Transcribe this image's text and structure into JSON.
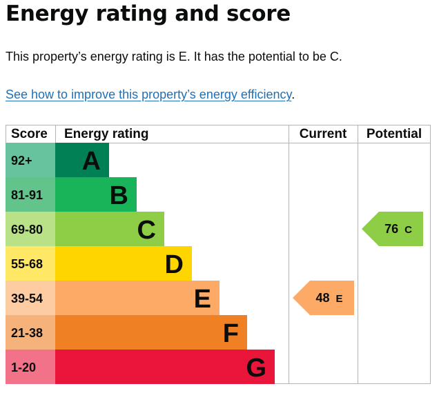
{
  "page": {
    "title": "Energy rating and score",
    "summary": "This property’s energy rating is E. It has the potential to be C.",
    "improve_link": "See how to improve this property’s energy efficiency",
    "improve_suffix": "."
  },
  "chart_data": {
    "type": "table",
    "columns": [
      "Score",
      "Energy rating",
      "Current",
      "Potential"
    ],
    "bands": [
      {
        "score": "92+",
        "rating": "A",
        "color": "#008054",
        "score_bg": "#66c39e"
      },
      {
        "score": "81-91",
        "rating": "B",
        "color": "#19b459",
        "score_bg": "#62c38b"
      },
      {
        "score": "69-80",
        "rating": "C",
        "color": "#8dce46",
        "score_bg": "#b9e288"
      },
      {
        "score": "55-68",
        "rating": "D",
        "color": "#ffd500",
        "score_bg": "#ffe866"
      },
      {
        "score": "39-54",
        "rating": "E",
        "color": "#fcaa65",
        "score_bg": "#fdcca3"
      },
      {
        "score": "21-38",
        "rating": "F",
        "color": "#ef8023",
        "score_bg": "#f5b37b"
      },
      {
        "score": "1-20",
        "rating": "G",
        "color": "#e9153b",
        "score_bg": "#f27389"
      }
    ],
    "current": {
      "value": 48,
      "rating": "E",
      "color": "#fcaa65"
    },
    "potential": {
      "value": 76,
      "rating": "C",
      "color": "#8dce46"
    }
  }
}
